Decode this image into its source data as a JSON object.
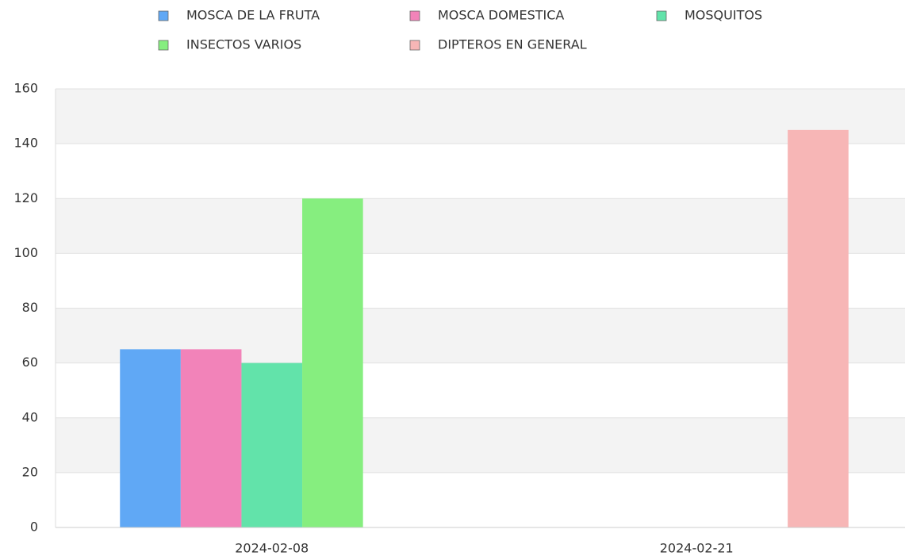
{
  "chart_data": {
    "type": "bar",
    "categories": [
      "2024-02-08",
      "2024-02-21"
    ],
    "series": [
      {
        "name": "MOSCA DE LA FRUTA",
        "color": "#60a8f5",
        "values": [
          65,
          null
        ]
      },
      {
        "name": "MOSCA DOMESTICA",
        "color": "#f283b9",
        "values": [
          65,
          null
        ]
      },
      {
        "name": "MOSQUITOS",
        "color": "#62e3aa",
        "values": [
          60,
          null
        ]
      },
      {
        "name": "INSECTOS VARIOS",
        "color": "#86ee7f",
        "values": [
          120,
          null
        ]
      },
      {
        "name": "DIPTEROS EN GENERAL",
        "color": "#f7b6b6",
        "values": [
          null,
          145
        ]
      }
    ],
    "ylim": [
      0,
      160
    ],
    "yticks": [
      0,
      20,
      40,
      60,
      80,
      100,
      120,
      140,
      160
    ],
    "grid": true,
    "legend": "top"
  }
}
